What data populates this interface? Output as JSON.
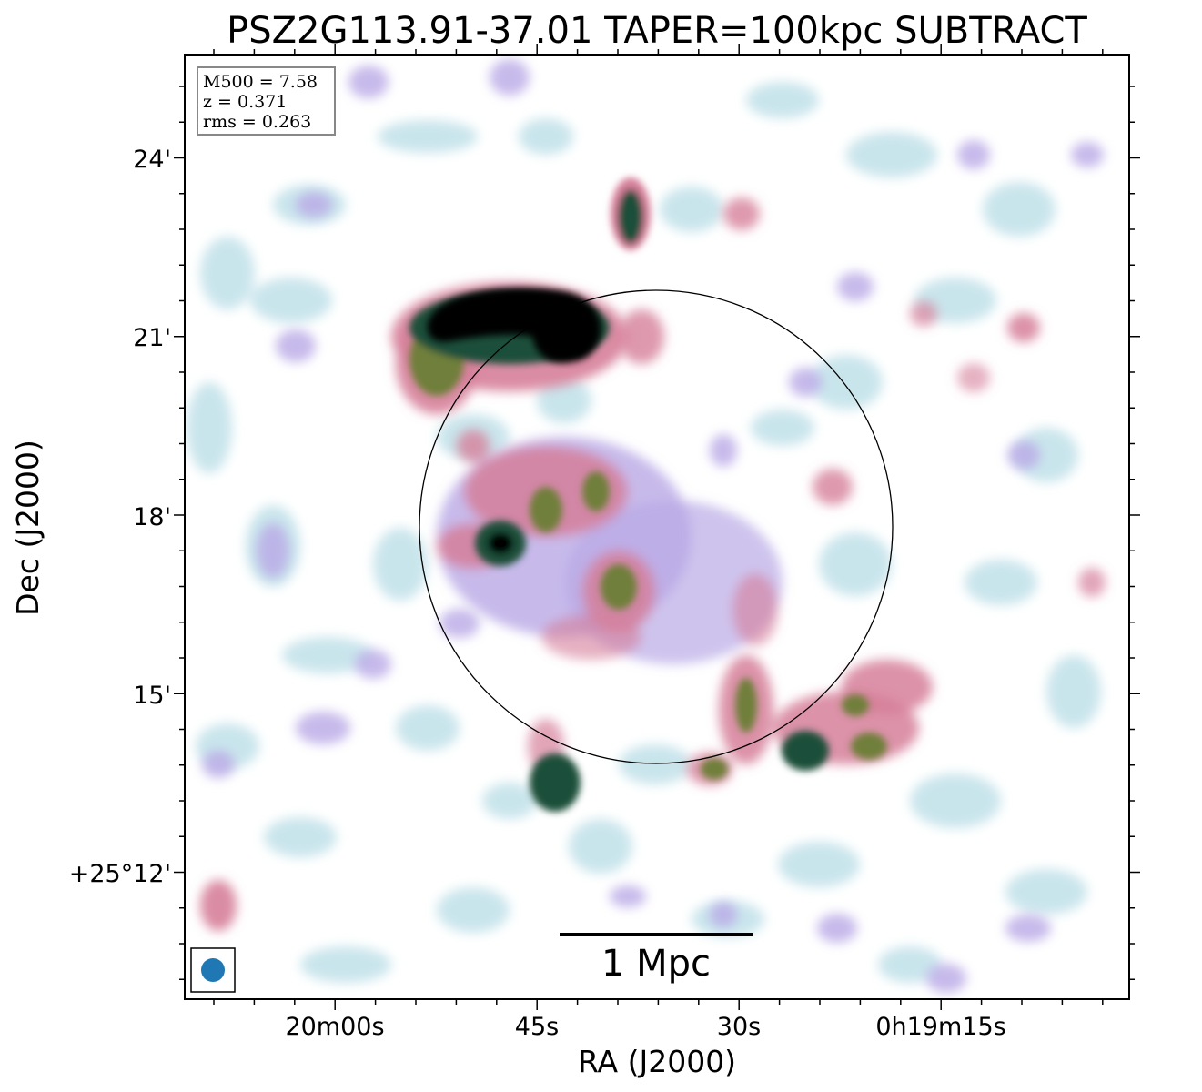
{
  "title": "PSZ2G113.91-37.01 TAPER=100kpc SUBTRACT",
  "info_box": {
    "line1": "M500 = 7.58",
    "line2": "z = 0.371",
    "line3": "rms = 0.263"
  },
  "axes": {
    "xlabel": "RA (J2000)",
    "ylabel": "Dec (J2000)",
    "xticks": [
      "20m00s",
      "45s",
      "30s",
      "0h19m15s"
    ],
    "yticks": [
      "24'",
      "21'",
      "18'",
      "15'",
      "+25°12'"
    ]
  },
  "scale_bar": {
    "label": "1 Mpc"
  },
  "colors": {
    "faint": "#b8dde6",
    "lavender": "#b9a9e6",
    "pink": "#d67f9a",
    "olive": "#6f7f3a",
    "dark_green": "#1f4f3a",
    "black": "#000000",
    "beam": "#1f77b4"
  },
  "icons": {
    "beam": "beam-ellipse-icon"
  }
}
